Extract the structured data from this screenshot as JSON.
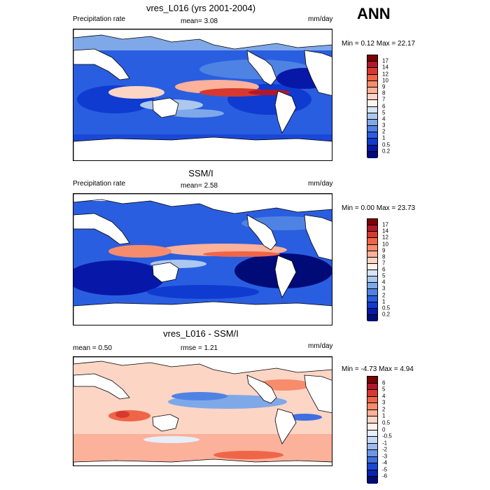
{
  "season": "ANN",
  "panels": [
    {
      "title": "vres_L016 (yrs 2001-2004)",
      "left_label": "Precipitation rate",
      "center_label": "mean=   3.08",
      "right_label": "mm/day",
      "minmax": "Min =   0.12 Max =  22.17",
      "colorbar": "precip"
    },
    {
      "title": "SSM/I",
      "left_label": "Precipitation rate",
      "center_label": "mean=   2.58",
      "right_label": "mm/day",
      "minmax": "Min =   0.00 Max =  23.73",
      "colorbar": "precip"
    },
    {
      "title": "vres_L016 - SSM/I",
      "left_label": "mean =   0.50",
      "center_label": "rmse =   1.21",
      "right_label": "mm/day",
      "minmax": "Min =  -4.73 Max =   4.94",
      "colorbar": "diff"
    }
  ],
  "colorbars": {
    "precip": {
      "labels": [
        "17",
        "14",
        "12",
        "10",
        "9",
        "8",
        "7",
        "6",
        "5",
        "4",
        "3",
        "2",
        "1",
        "0.5",
        "0.2"
      ],
      "colors": [
        "#7a0403",
        "#b2182b",
        "#d6392f",
        "#ef6548",
        "#f68c6c",
        "#fbb19a",
        "#fcd5c5",
        "#fff2ec",
        "#d6e4f7",
        "#adc8ef",
        "#7fa8e8",
        "#4f83e3",
        "#2a5ee0",
        "#0f3bd1",
        "#0718a8",
        "#000b78"
      ]
    },
    "diff": {
      "labels": [
        "6",
        "5",
        "4",
        "3",
        "2",
        "1",
        "0.5",
        "0",
        "-0.5",
        "-1",
        "-2",
        "-3",
        "-4",
        "-5",
        "-6"
      ],
      "colors": [
        "#7a0403",
        "#b2182b",
        "#d6392f",
        "#ef6548",
        "#f68c6c",
        "#fbb19a",
        "#fcd5c5",
        "#fff2ec",
        "#e6eefa",
        "#c6d8f4",
        "#9dbbee",
        "#6d96e6",
        "#3f6fe0",
        "#1a47d6",
        "#0a22b0",
        "#000b78"
      ]
    }
  }
}
